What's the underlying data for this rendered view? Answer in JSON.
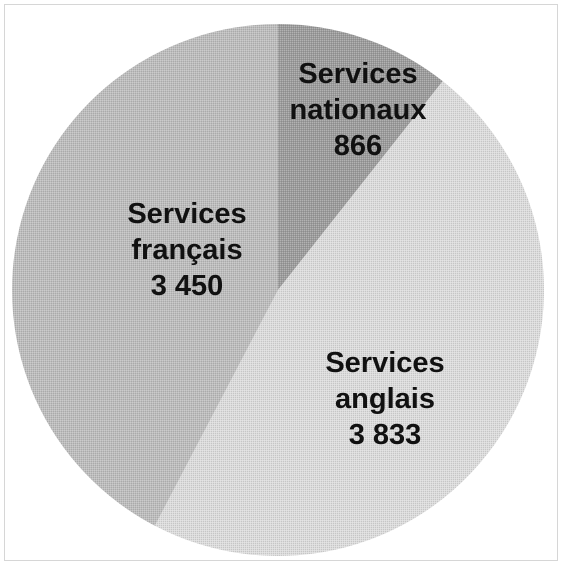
{
  "chart_data": {
    "type": "pie",
    "title": "",
    "slices": [
      {
        "label_lines": [
          "Services",
          "nationaux"
        ],
        "value_text": "866",
        "value": 866,
        "color": "#9c9c9c"
      },
      {
        "label_lines": [
          "Services",
          "anglais"
        ],
        "value_text": "3 833",
        "value": 3833,
        "color": "#dcdcdc"
      },
      {
        "label_lines": [
          "Services",
          "français"
        ],
        "value_text": "3 450",
        "value": 3450,
        "color": "#bdbdbd"
      }
    ],
    "start_angle_deg": 0,
    "direction": "clockwise",
    "legend": "none"
  }
}
